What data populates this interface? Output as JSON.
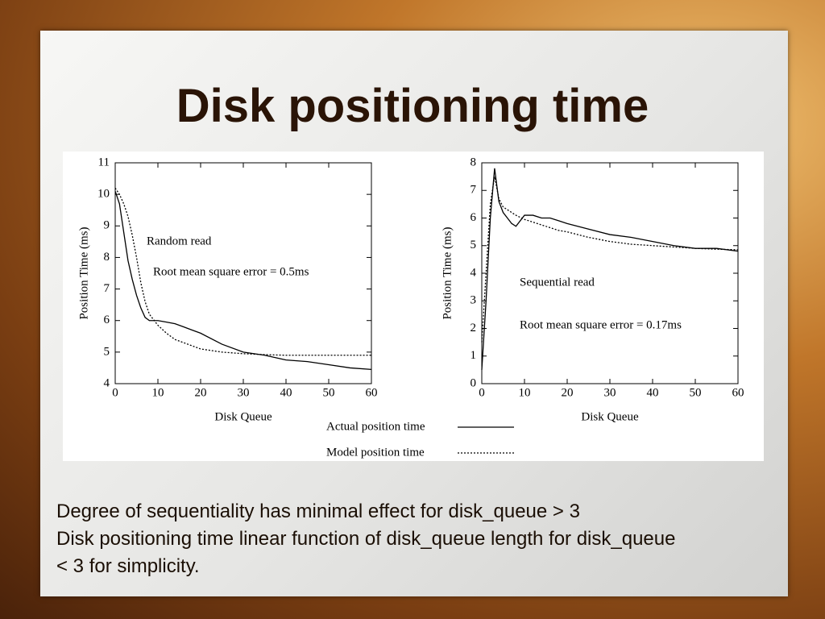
{
  "slide": {
    "title": "Disk positioning time",
    "body": [
      "Degree of sequentiality has minimal effect for disk_queue > 3",
      "Disk positioning time linear function of disk_queue length for disk_queue < 3 for simplicity."
    ]
  },
  "chart_data": [
    {
      "type": "line",
      "annotations": [
        "Random read",
        "Root mean square error = 0.5ms"
      ],
      "x_label": "Disk Queue",
      "y_label": "Position Time (ms)",
      "x": [
        0,
        1,
        2,
        3,
        4,
        5,
        6,
        7,
        8,
        10,
        12,
        14,
        16,
        18,
        20,
        25,
        30,
        35,
        40,
        45,
        50,
        55,
        60
      ],
      "xlim": [
        0,
        60
      ],
      "xticks": [
        0,
        10,
        20,
        30,
        40,
        50,
        60
      ],
      "ylim": [
        4,
        11
      ],
      "yticks": [
        4,
        5,
        6,
        7,
        8,
        9,
        10,
        11
      ],
      "series": [
        {
          "name": "Actual position time",
          "color": "#000000",
          "dash": "solid",
          "values": [
            10.1,
            9.7,
            8.8,
            7.9,
            7.3,
            6.8,
            6.4,
            6.1,
            6.0,
            6.0,
            5.95,
            5.9,
            5.8,
            5.7,
            5.6,
            5.25,
            5.0,
            4.9,
            4.75,
            4.7,
            4.6,
            4.5,
            4.45
          ]
        },
        {
          "name": "Model position time",
          "color": "#000000",
          "dash": "dotted",
          "values": [
            10.2,
            10.0,
            9.7,
            9.3,
            8.7,
            8.0,
            7.2,
            6.6,
            6.2,
            5.85,
            5.6,
            5.4,
            5.3,
            5.2,
            5.1,
            5.0,
            4.95,
            4.92,
            4.9,
            4.9,
            4.9,
            4.9,
            4.9
          ]
        }
      ]
    },
    {
      "type": "line",
      "annotations": [
        "Sequential read",
        "Root mean square error = 0.17ms"
      ],
      "x_label": "Disk Queue",
      "y_label": "Position Time (ms)",
      "x": [
        0,
        1,
        2,
        3,
        4,
        5,
        6,
        7,
        8,
        10,
        12,
        14,
        16,
        18,
        20,
        25,
        30,
        35,
        40,
        45,
        50,
        55,
        60
      ],
      "xlim": [
        0,
        60
      ],
      "xticks": [
        0,
        10,
        20,
        30,
        40,
        50,
        60
      ],
      "ylim": [
        0,
        8
      ],
      "yticks": [
        0,
        1,
        2,
        3,
        4,
        5,
        6,
        7,
        8
      ],
      "series": [
        {
          "color": "#000000",
          "dash": "solid",
          "values": [
            0.5,
            3,
            6,
            7.8,
            6.6,
            6.2,
            6.0,
            5.8,
            5.7,
            6.1,
            6.1,
            6.0,
            6.0,
            5.9,
            5.8,
            5.6,
            5.4,
            5.3,
            5.15,
            5.0,
            4.9,
            4.9,
            4.8
          ]
        },
        {
          "color": "#000000",
          "dash": "dotted",
          "values": [
            1.5,
            4,
            6.5,
            7.5,
            6.7,
            6.4,
            6.3,
            6.2,
            6.1,
            5.95,
            5.85,
            5.75,
            5.65,
            5.55,
            5.5,
            5.3,
            5.15,
            5.05,
            5.0,
            4.95,
            4.9,
            4.87,
            4.85
          ]
        }
      ]
    }
  ]
}
